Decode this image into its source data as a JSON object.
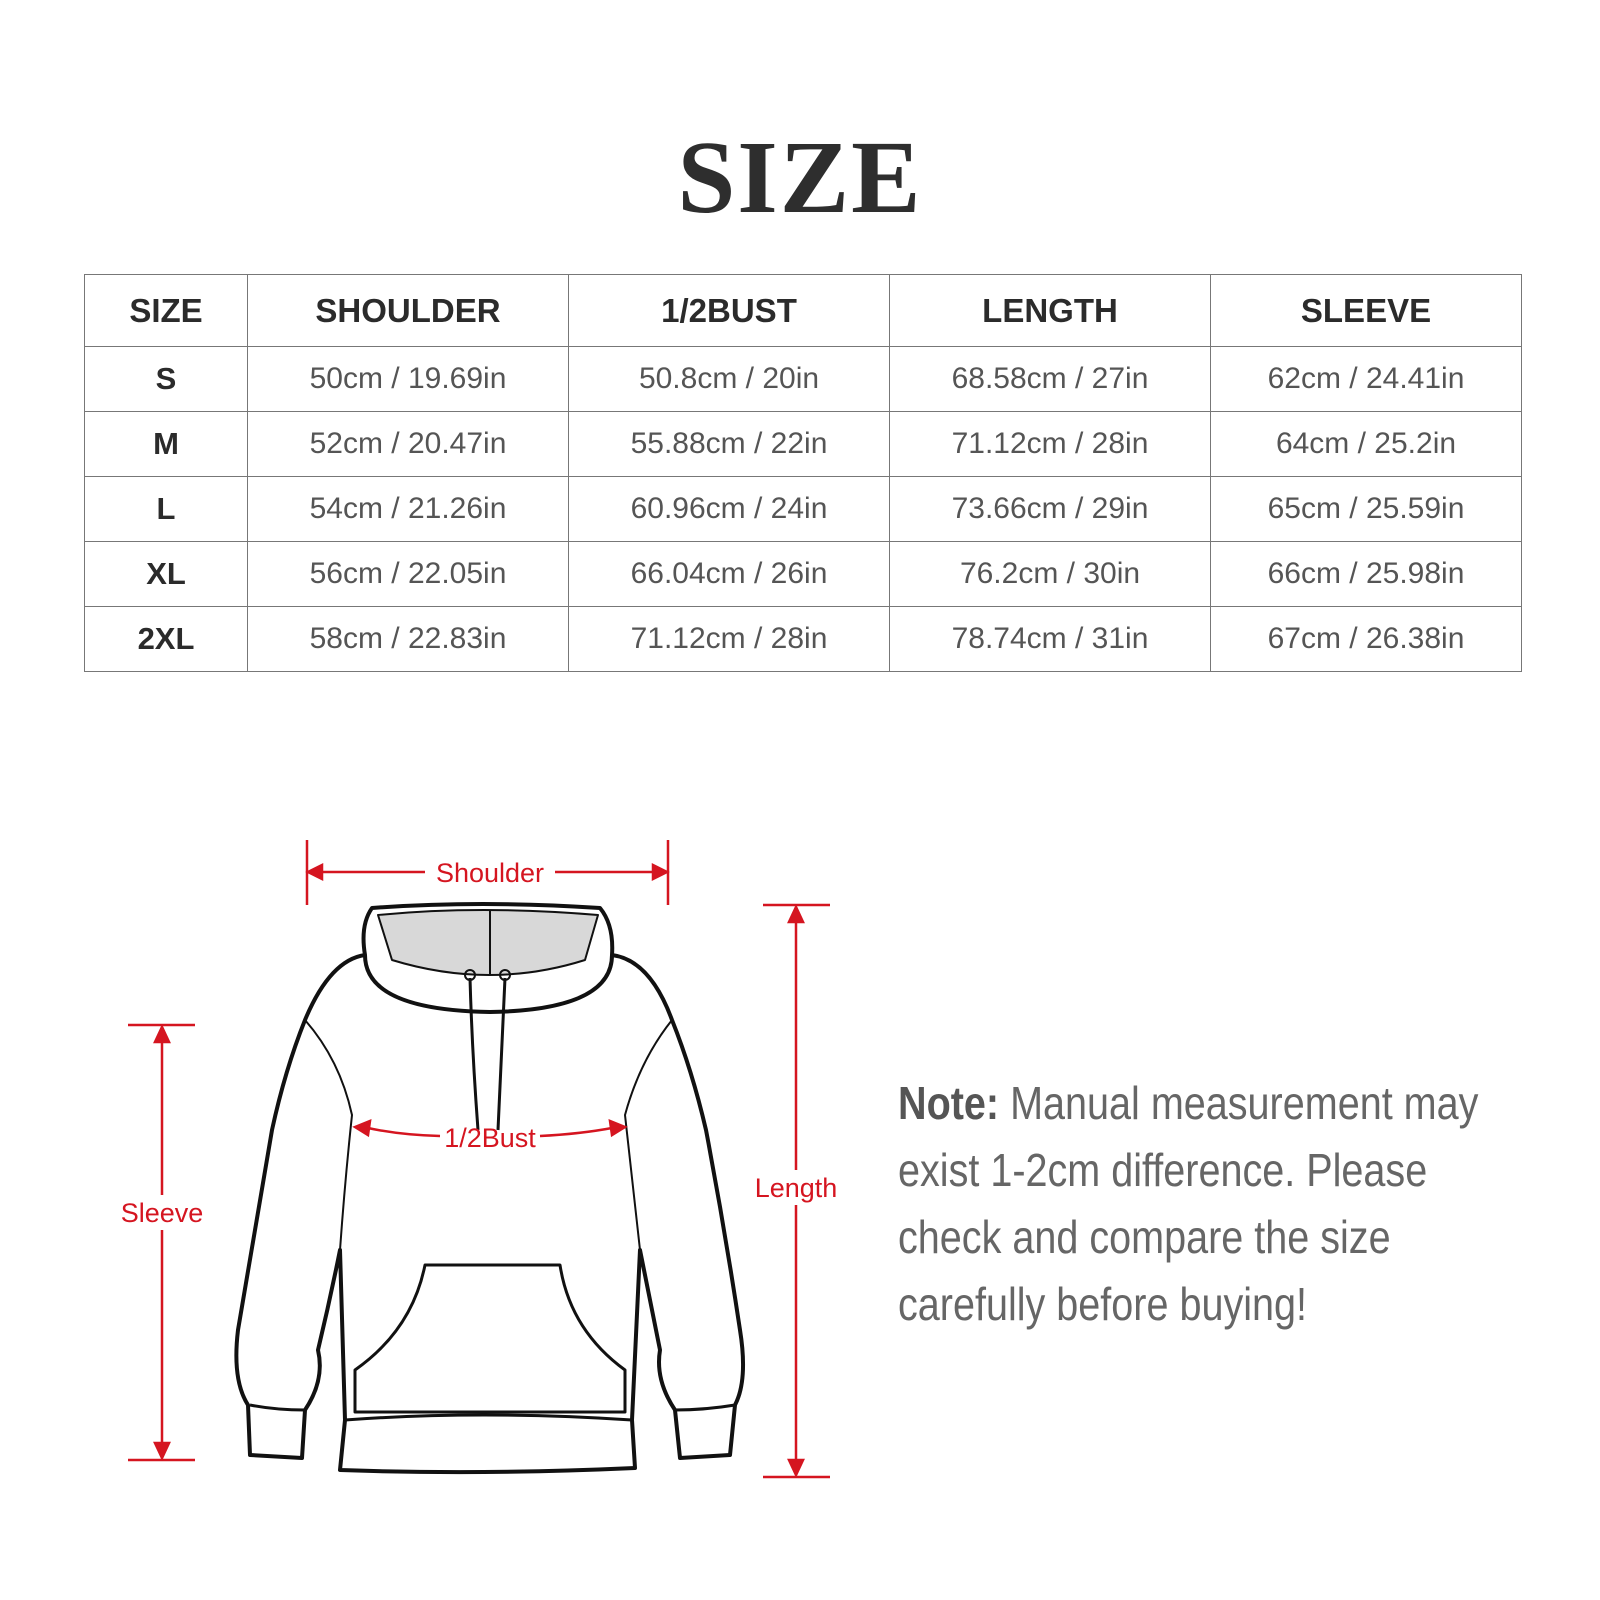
{
  "title": "SIZE",
  "table": {
    "headers": [
      "SIZE",
      "SHOULDER",
      "1/2BUST",
      "LENGTH",
      "SLEEVE"
    ],
    "rows": [
      [
        "S",
        "50cm / 19.69in",
        "50.8cm / 20in",
        "68.58cm / 27in",
        "62cm / 24.41in"
      ],
      [
        "M",
        "52cm / 20.47in",
        "55.88cm / 22in",
        "71.12cm / 28in",
        "64cm / 25.2in"
      ],
      [
        "L",
        "54cm / 21.26in",
        "60.96cm / 24in",
        "73.66cm / 29in",
        "65cm / 25.59in"
      ],
      [
        "XL",
        "56cm / 22.05in",
        "66.04cm / 26in",
        "76.2cm / 30in",
        "66cm / 25.98in"
      ],
      [
        "2XL",
        "58cm / 22.83in",
        "71.12cm / 28in",
        "78.74cm / 31in",
        "67cm / 26.38in"
      ]
    ]
  },
  "diagram": {
    "labels": {
      "shoulder": "Shoulder",
      "bust": "1/2Bust",
      "sleeve": "Sleeve",
      "length": "Length"
    },
    "accent_color": "#d51520"
  },
  "note": {
    "label": "Note:",
    "text": " Manual measurement may exist 1-2cm difference. Please check and compare the size carefully before buying!"
  }
}
